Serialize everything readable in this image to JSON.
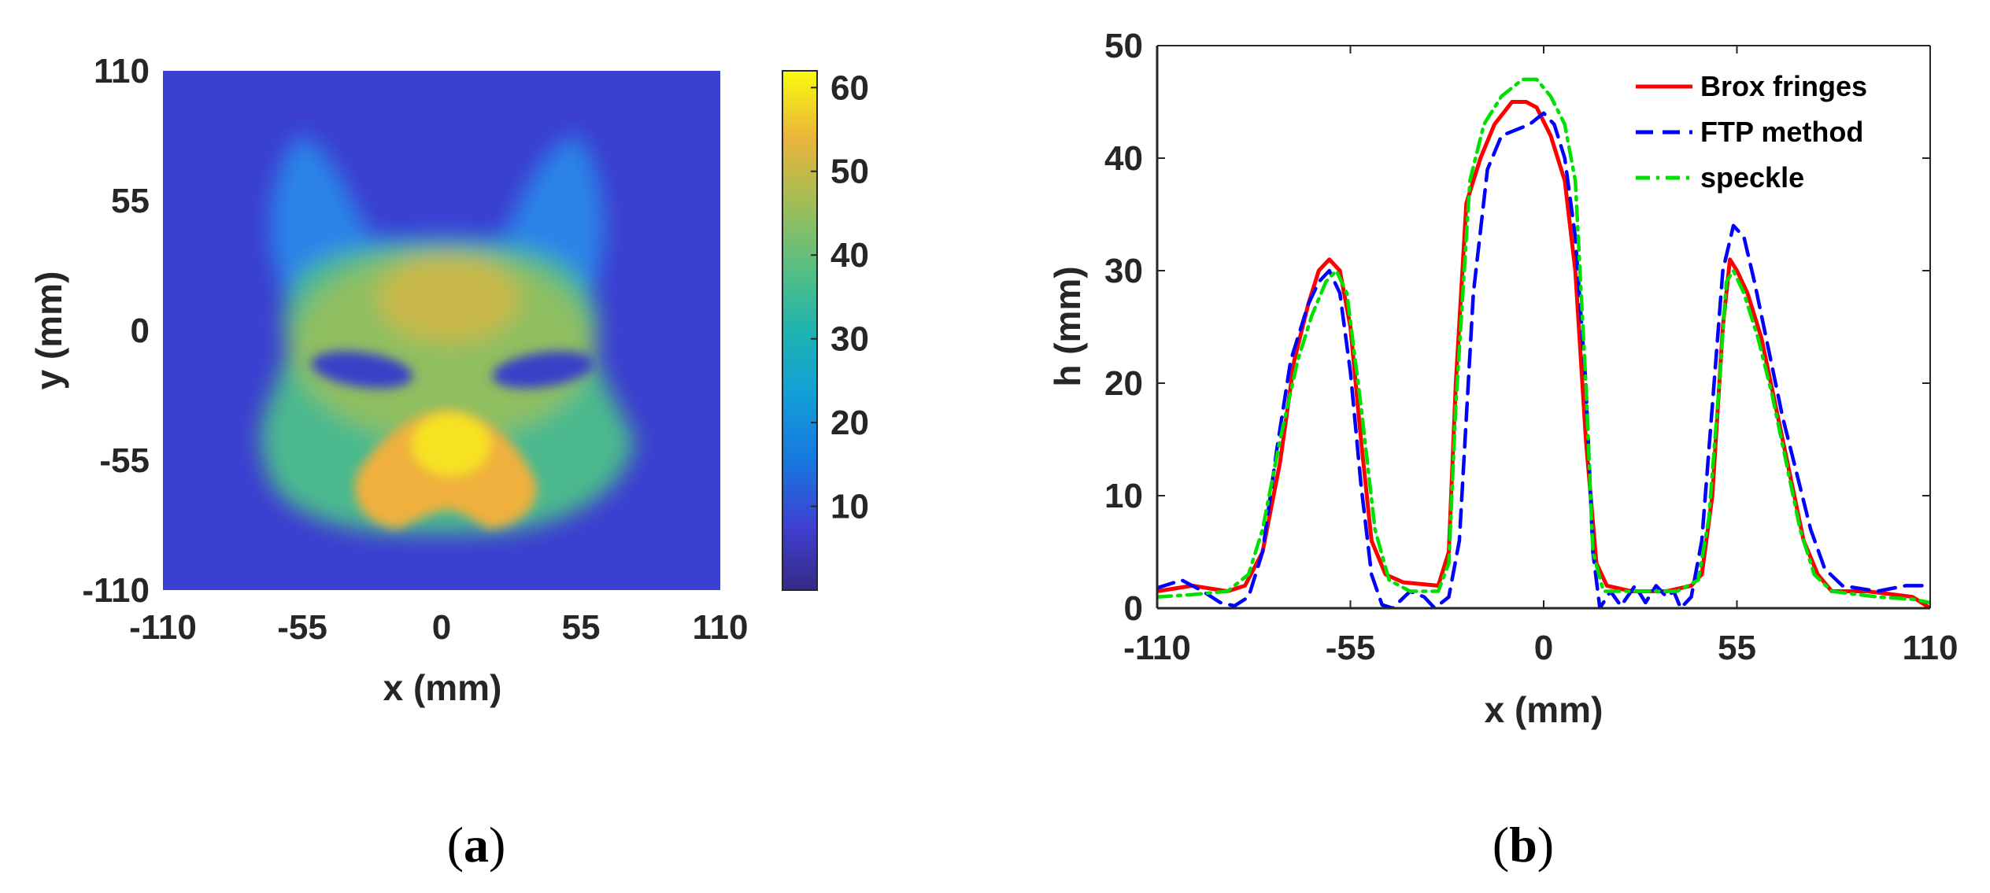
{
  "chart_data": [
    {
      "type": "heatmap",
      "panel_label": "a",
      "xlabel": "x (mm)",
      "ylabel": "y (mm)",
      "xlim": [
        -110,
        110
      ],
      "ylim": [
        -110,
        110
      ],
      "xticks": [
        -110,
        -55,
        0,
        55,
        110
      ],
      "yticks": [
        110,
        55,
        0,
        -55,
        -110
      ],
      "colorbar": {
        "ticks": [
          60,
          50,
          40,
          30,
          20,
          10
        ],
        "range": [
          0,
          62
        ],
        "colormap": "parula"
      },
      "description_values": {
        "background_level": 3,
        "face_level": 38,
        "ear_level": 18,
        "nose_level": 55,
        "eye_level": 3
      }
    },
    {
      "type": "line",
      "panel_label": "b",
      "xlabel": "x (mm)",
      "ylabel": "h (mm)",
      "xlim": [
        -110,
        110
      ],
      "ylim": [
        0,
        50
      ],
      "xticks": [
        -110,
        -55,
        0,
        55,
        110
      ],
      "yticks": [
        0,
        10,
        20,
        30,
        40,
        50
      ],
      "legend_position": "top-right",
      "series": [
        {
          "name": "Brox fringes",
          "color": "#ff0000",
          "style": "solid",
          "points": [
            [
              -110,
              1.5
            ],
            [
              -100,
              2
            ],
            [
              -90,
              1.5
            ],
            [
              -85,
              2
            ],
            [
              -80,
              5
            ],
            [
              -75,
              13
            ],
            [
              -71,
              22
            ],
            [
              -67,
              27
            ],
            [
              -64,
              30
            ],
            [
              -61,
              31
            ],
            [
              -58,
              30
            ],
            [
              -55,
              25
            ],
            [
              -52,
              15
            ],
            [
              -49,
              6
            ],
            [
              -45,
              3
            ],
            [
              -40,
              2.3
            ],
            [
              -30,
              2
            ],
            [
              -27,
              5
            ],
            [
              -25,
              20
            ],
            [
              -22,
              36
            ],
            [
              -18,
              40
            ],
            [
              -14,
              43
            ],
            [
              -9,
              45
            ],
            [
              -5,
              45
            ],
            [
              -2,
              44.5
            ],
            [
              2,
              42
            ],
            [
              6,
              38
            ],
            [
              9,
              30
            ],
            [
              12,
              15
            ],
            [
              15,
              4
            ],
            [
              18,
              2
            ],
            [
              25,
              1.5
            ],
            [
              35,
              1.5
            ],
            [
              42,
              2
            ],
            [
              45,
              3
            ],
            [
              48,
              10
            ],
            [
              51,
              25
            ],
            [
              53,
              31
            ],
            [
              55,
              30
            ],
            [
              58,
              28
            ],
            [
              62,
              24
            ],
            [
              66,
              18
            ],
            [
              70,
              12
            ],
            [
              74,
              6
            ],
            [
              78,
              3
            ],
            [
              82,
              1.5
            ],
            [
              92,
              1.5
            ],
            [
              100,
              1.2
            ],
            [
              105,
              1
            ],
            [
              110,
              0
            ]
          ]
        },
        {
          "name": "FTP method",
          "color": "#0000ff",
          "style": "dashed",
          "points": [
            [
              -110,
              1.8
            ],
            [
              -103,
              2.5
            ],
            [
              -97,
              1.5
            ],
            [
              -92,
              0.5
            ],
            [
              -88,
              0.2
            ],
            [
              -84,
              1
            ],
            [
              -80,
              5
            ],
            [
              -76,
              14
            ],
            [
              -72,
              22
            ],
            [
              -67,
              27
            ],
            [
              -64,
              29
            ],
            [
              -61,
              30
            ],
            [
              -58,
              28
            ],
            [
              -55,
              21
            ],
            [
              -52,
              11
            ],
            [
              -49,
              3
            ],
            [
              -46,
              0.3
            ],
            [
              -43,
              0
            ],
            [
              -38,
              1.5
            ],
            [
              -34,
              1
            ],
            [
              -31,
              0
            ],
            [
              -27,
              1
            ],
            [
              -24,
              6
            ],
            [
              -20,
              28
            ],
            [
              -16,
              39
            ],
            [
              -12,
              42
            ],
            [
              -8,
              42.5
            ],
            [
              -4,
              43
            ],
            [
              0,
              44
            ],
            [
              3,
              43
            ],
            [
              6,
              40
            ],
            [
              9,
              33
            ],
            [
              12,
              20
            ],
            [
              14,
              5
            ],
            [
              16,
              0
            ],
            [
              19,
              1.5
            ],
            [
              22,
              0.2
            ],
            [
              26,
              2
            ],
            [
              29,
              0.5
            ],
            [
              32,
              2
            ],
            [
              35,
              1
            ],
            [
              37,
              1.5
            ],
            [
              39,
              0
            ],
            [
              42,
              1
            ],
            [
              45,
              6
            ],
            [
              48,
              18
            ],
            [
              51,
              30
            ],
            [
              54,
              34
            ],
            [
              57,
              33
            ],
            [
              60,
              29
            ],
            [
              64,
              23
            ],
            [
              68,
              17
            ],
            [
              72,
              12
            ],
            [
              76,
              7
            ],
            [
              80,
              3.5
            ],
            [
              85,
              2
            ],
            [
              95,
              1.5
            ],
            [
              103,
              2
            ],
            [
              110,
              2
            ]
          ]
        },
        {
          "name": "speckle",
          "color": "#00e000",
          "style": "dashdot",
          "points": [
            [
              -110,
              1
            ],
            [
              -100,
              1.2
            ],
            [
              -90,
              1.5
            ],
            [
              -84,
              3
            ],
            [
              -80,
              7
            ],
            [
              -75,
              15
            ],
            [
              -70,
              22
            ],
            [
              -66,
              26
            ],
            [
              -62,
              29
            ],
            [
              -59,
              30
            ],
            [
              -56,
              28
            ],
            [
              -52,
              18
            ],
            [
              -48,
              7
            ],
            [
              -44,
              2.5
            ],
            [
              -38,
              1.5
            ],
            [
              -30,
              1.5
            ],
            [
              -27,
              4
            ],
            [
              -25,
              18
            ],
            [
              -21,
              38
            ],
            [
              -17,
              43
            ],
            [
              -12,
              45.5
            ],
            [
              -6,
              47
            ],
            [
              -2,
              47
            ],
            [
              2,
              45.5
            ],
            [
              6,
              43
            ],
            [
              9,
              38
            ],
            [
              12,
              20
            ],
            [
              14,
              5
            ],
            [
              17,
              1.5
            ],
            [
              25,
              1.5
            ],
            [
              38,
              1.5
            ],
            [
              44,
              2.5
            ],
            [
              47,
              8
            ],
            [
              50,
              20
            ],
            [
              52,
              29
            ],
            [
              54,
              30
            ],
            [
              57,
              28
            ],
            [
              61,
              24
            ],
            [
              65,
              19
            ],
            [
              69,
              13
            ],
            [
              73,
              7
            ],
            [
              77,
              3
            ],
            [
              82,
              1.5
            ],
            [
              95,
              1
            ],
            [
              105,
              0.8
            ],
            [
              110,
              0.5
            ]
          ]
        }
      ]
    }
  ]
}
